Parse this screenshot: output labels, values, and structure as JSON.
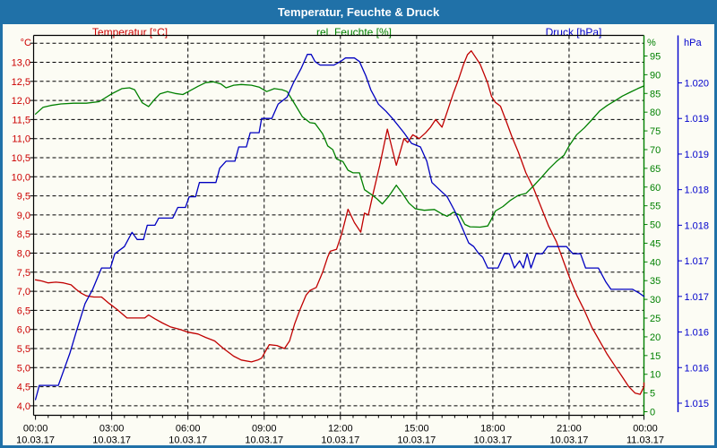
{
  "window": {
    "title": "Temperatur, Feuchte & Druck"
  },
  "header": {
    "temperature_label": "Temperatur [°C]",
    "humidity_label": "rel. Feuchte [%]",
    "pressure_label": "Druck [hPa]"
  },
  "colors": {
    "titlebar": "#2071a8",
    "background": "#fcfcf4",
    "temperature": "#c00000",
    "humidity": "#008000",
    "pressure": "#0000c0",
    "grid": "#000000",
    "text": "#000000"
  },
  "axes": {
    "temperature": {
      "unit": "°C",
      "label_color": "#cc0000",
      "tick_min": 4.0,
      "tick_max": 13.0,
      "tick_step": 0.5,
      "decimal_separator": ","
    },
    "humidity": {
      "unit": "%",
      "label_color": "#008000",
      "tick_min": 0,
      "tick_max": 95,
      "tick_step": 5
    },
    "pressure": {
      "unit": "hPa",
      "label_color": "#0000cc",
      "tick_labels": [
        "1.020",
        "1.019",
        "1.019",
        "1.018",
        "1.018",
        "1.017",
        "1.017",
        "1.016",
        "1.016",
        "1.015"
      ]
    },
    "time": {
      "tick_times": [
        "00:00",
        "03:00",
        "06:00",
        "09:00",
        "12:00",
        "15:00",
        "18:00",
        "21:00",
        "00:00"
      ],
      "tick_dates": [
        "10.03.17",
        "10.03.17",
        "10.03.17",
        "10.03.17",
        "10.03.17",
        "10.03.17",
        "10.03.17",
        "10.03.17",
        "11.03.17"
      ]
    }
  },
  "chart_data": {
    "type": "line",
    "title": "Temperatur, Feuchte & Druck",
    "x": {
      "unit": "hours",
      "range": [
        0,
        24
      ],
      "major_tick_hours": 3,
      "minor_tick_hours": 0.5
    },
    "grid": {
      "horizontal_step_degC": 0.5,
      "vertical_step_hours": 3,
      "style": "dashed"
    },
    "y_axes": {
      "temperature_degC": {
        "labels_from": 13.0,
        "labels_to": 4.0,
        "step": -0.5
      },
      "humidity_pct": {
        "labels_from": 95,
        "labels_to": 0,
        "step": -5
      },
      "pressure_hPa": {
        "labels_top_to_bottom": [
          "1.020",
          "1.019",
          "1.019",
          "1.018",
          "1.018",
          "1.017",
          "1.017",
          "1.016",
          "1.016",
          "1.015"
        ],
        "value_top": 1.02,
        "value_step": -0.0005
      }
    },
    "series": [
      {
        "name": "Temperatur",
        "unit": "°C",
        "axis": "temperature",
        "color": "#c00000",
        "points": [
          [
            0,
            7.3
          ],
          [
            0.25,
            7.27
          ],
          [
            0.5,
            7.22
          ],
          [
            0.8,
            7.24
          ],
          [
            1.1,
            7.22
          ],
          [
            1.4,
            7.17
          ],
          [
            1.6,
            7.05
          ],
          [
            1.8,
            6.95
          ],
          [
            2.0,
            6.88
          ],
          [
            2.3,
            6.85
          ],
          [
            2.6,
            6.85
          ],
          [
            2.9,
            6.68
          ],
          [
            3.2,
            6.53
          ],
          [
            3.6,
            6.3
          ],
          [
            4.3,
            6.3
          ],
          [
            4.45,
            6.38
          ],
          [
            4.7,
            6.28
          ],
          [
            5.0,
            6.17
          ],
          [
            5.3,
            6.07
          ],
          [
            5.7,
            6.0
          ],
          [
            6.0,
            5.93
          ],
          [
            6.4,
            5.88
          ],
          [
            6.7,
            5.79
          ],
          [
            7.05,
            5.7
          ],
          [
            7.4,
            5.5
          ],
          [
            7.8,
            5.3
          ],
          [
            8.1,
            5.2
          ],
          [
            8.5,
            5.15
          ],
          [
            8.75,
            5.2
          ],
          [
            8.9,
            5.25
          ],
          [
            9.2,
            5.6
          ],
          [
            9.5,
            5.58
          ],
          [
            9.8,
            5.5
          ],
          [
            10.0,
            5.7
          ],
          [
            10.2,
            6.15
          ],
          [
            10.4,
            6.5
          ],
          [
            10.65,
            6.9
          ],
          [
            10.8,
            7.02
          ],
          [
            11.05,
            7.1
          ],
          [
            11.3,
            7.5
          ],
          [
            11.5,
            7.9
          ],
          [
            11.6,
            8.05
          ],
          [
            11.85,
            8.1
          ],
          [
            12.05,
            8.5
          ],
          [
            12.3,
            9.15
          ],
          [
            12.55,
            8.8
          ],
          [
            12.8,
            8.55
          ],
          [
            12.95,
            9.05
          ],
          [
            13.1,
            9.0
          ],
          [
            13.3,
            9.6
          ],
          [
            13.55,
            10.3
          ],
          [
            13.85,
            11.25
          ],
          [
            14.05,
            10.7
          ],
          [
            14.2,
            10.3
          ],
          [
            14.5,
            11.0
          ],
          [
            14.65,
            10.9
          ],
          [
            14.85,
            11.1
          ],
          [
            15.1,
            11.0
          ],
          [
            15.35,
            11.15
          ],
          [
            15.55,
            11.3
          ],
          [
            15.75,
            11.5
          ],
          [
            16.0,
            11.3
          ],
          [
            16.2,
            11.7
          ],
          [
            16.45,
            12.2
          ],
          [
            16.65,
            12.55
          ],
          [
            16.85,
            12.95
          ],
          [
            17.0,
            13.2
          ],
          [
            17.15,
            13.3
          ],
          [
            17.35,
            13.1
          ],
          [
            17.5,
            12.95
          ],
          [
            17.65,
            12.7
          ],
          [
            17.8,
            12.45
          ],
          [
            17.95,
            12.1
          ],
          [
            18.1,
            11.95
          ],
          [
            18.3,
            11.85
          ],
          [
            18.5,
            11.5
          ],
          [
            18.75,
            11.05
          ],
          [
            19.0,
            10.65
          ],
          [
            19.3,
            10.1
          ],
          [
            19.6,
            9.7
          ],
          [
            19.9,
            9.2
          ],
          [
            20.2,
            8.7
          ],
          [
            20.5,
            8.3
          ],
          [
            20.8,
            7.75
          ],
          [
            21.05,
            7.3
          ],
          [
            21.3,
            6.9
          ],
          [
            21.6,
            6.5
          ],
          [
            21.9,
            6.05
          ],
          [
            22.2,
            5.7
          ],
          [
            22.5,
            5.35
          ],
          [
            22.8,
            5.05
          ],
          [
            23.1,
            4.75
          ],
          [
            23.35,
            4.5
          ],
          [
            23.6,
            4.33
          ],
          [
            23.8,
            4.3
          ],
          [
            23.95,
            4.5
          ],
          [
            24,
            4.6
          ]
        ]
      },
      {
        "name": "rel. Feuchte",
        "unit": "%",
        "axis": "humidity",
        "color": "#008000",
        "points": [
          [
            0,
            79.5
          ],
          [
            0.3,
            81.3
          ],
          [
            0.6,
            81.8
          ],
          [
            1.0,
            82.2
          ],
          [
            1.5,
            82.4
          ],
          [
            2.0,
            82.4
          ],
          [
            2.5,
            82.8
          ],
          [
            3.0,
            84.9
          ],
          [
            3.4,
            86.3
          ],
          [
            3.7,
            86.5
          ],
          [
            3.9,
            86.0
          ],
          [
            4.2,
            82.5
          ],
          [
            4.45,
            81.5
          ],
          [
            4.7,
            83.5
          ],
          [
            4.9,
            84.9
          ],
          [
            5.2,
            85.5
          ],
          [
            5.5,
            85.0
          ],
          [
            5.8,
            84.7
          ],
          [
            6.1,
            85.8
          ],
          [
            6.4,
            86.9
          ],
          [
            6.7,
            87.9
          ],
          [
            7.0,
            88.1
          ],
          [
            7.3,
            87.5
          ],
          [
            7.5,
            86.5
          ],
          [
            7.8,
            87.2
          ],
          [
            8.1,
            87.4
          ],
          [
            8.5,
            87.2
          ],
          [
            8.8,
            86.7
          ],
          [
            9.1,
            85.5
          ],
          [
            9.4,
            86.3
          ],
          [
            9.7,
            86.0
          ],
          [
            9.9,
            85.5
          ],
          [
            10.2,
            82.2
          ],
          [
            10.5,
            78.8
          ],
          [
            10.8,
            77.2
          ],
          [
            11.0,
            77.0
          ],
          [
            11.3,
            74.2
          ],
          [
            11.5,
            71.0
          ],
          [
            11.7,
            70.0
          ],
          [
            11.85,
            67.5
          ],
          [
            12.1,
            66.8
          ],
          [
            12.3,
            64.5
          ],
          [
            12.5,
            63.8
          ],
          [
            12.75,
            63.8
          ],
          [
            12.95,
            59.3
          ],
          [
            13.2,
            58.1
          ],
          [
            13.45,
            56.8
          ],
          [
            13.65,
            55.5
          ],
          [
            13.9,
            57.5
          ],
          [
            14.2,
            60.5
          ],
          [
            14.45,
            58.2
          ],
          [
            14.7,
            55.7
          ],
          [
            14.95,
            54.2
          ],
          [
            15.3,
            53.8
          ],
          [
            15.7,
            54.0
          ],
          [
            16.0,
            52.8
          ],
          [
            16.2,
            52.2
          ],
          [
            16.45,
            53.3
          ],
          [
            16.7,
            52.5
          ],
          [
            16.9,
            50.0
          ],
          [
            17.1,
            49.4
          ],
          [
            17.5,
            49.3
          ],
          [
            17.8,
            49.6
          ],
          [
            17.95,
            51.5
          ],
          [
            18.1,
            53.6
          ],
          [
            18.4,
            54.8
          ],
          [
            18.7,
            56.5
          ],
          [
            19.0,
            57.8
          ],
          [
            19.3,
            58.3
          ],
          [
            19.6,
            60.3
          ],
          [
            19.9,
            62.5
          ],
          [
            20.2,
            64.8
          ],
          [
            20.5,
            66.8
          ],
          [
            20.8,
            68.5
          ],
          [
            21.0,
            71.0
          ],
          [
            21.3,
            74.0
          ],
          [
            21.6,
            75.8
          ],
          [
            21.9,
            78.0
          ],
          [
            22.2,
            80.3
          ],
          [
            22.5,
            81.8
          ],
          [
            22.8,
            83.0
          ],
          [
            23.1,
            84.3
          ],
          [
            23.4,
            85.3
          ],
          [
            23.7,
            86.3
          ],
          [
            24,
            87.0
          ]
        ]
      },
      {
        "name": "Druck",
        "unit": "hPa",
        "axis": "pressure",
        "color": "#0000c0",
        "points": [
          [
            0,
            1.01555
          ],
          [
            0.15,
            1.01575
          ],
          [
            0.9,
            1.01575
          ],
          [
            1.15,
            1.016
          ],
          [
            1.35,
            1.0162
          ],
          [
            1.6,
            1.0165
          ],
          [
            1.95,
            1.0169
          ],
          [
            2.25,
            1.0171
          ],
          [
            2.6,
            1.0174
          ],
          [
            2.95,
            1.0174
          ],
          [
            3.12,
            1.0176
          ],
          [
            3.5,
            1.0177
          ],
          [
            3.8,
            1.0179
          ],
          [
            4.0,
            1.0178
          ],
          [
            4.25,
            1.0178
          ],
          [
            4.4,
            1.018
          ],
          [
            4.7,
            1.018
          ],
          [
            4.85,
            1.0181
          ],
          [
            5.4,
            1.0181
          ],
          [
            5.6,
            1.01825
          ],
          [
            5.9,
            1.01825
          ],
          [
            6.05,
            1.0184
          ],
          [
            6.3,
            1.0184
          ],
          [
            6.45,
            1.0186
          ],
          [
            7.1,
            1.0186
          ],
          [
            7.25,
            1.0188
          ],
          [
            7.5,
            1.0189
          ],
          [
            7.85,
            1.0189
          ],
          [
            8.0,
            1.0191
          ],
          [
            8.3,
            1.0191
          ],
          [
            8.45,
            1.0193
          ],
          [
            8.8,
            1.0193
          ],
          [
            8.9,
            1.0195
          ],
          [
            9.3,
            1.0195
          ],
          [
            9.55,
            1.0197
          ],
          [
            9.9,
            1.0198
          ],
          [
            10.15,
            1.02
          ],
          [
            10.45,
            1.0202
          ],
          [
            10.7,
            1.0204
          ],
          [
            10.85,
            1.0204
          ],
          [
            11.0,
            1.0203
          ],
          [
            11.2,
            1.02025
          ],
          [
            11.75,
            1.02025
          ],
          [
            12.0,
            1.0203
          ],
          [
            12.2,
            1.02035
          ],
          [
            12.55,
            1.02035
          ],
          [
            12.75,
            1.0203
          ],
          [
            13.0,
            1.0201
          ],
          [
            13.2,
            1.0199
          ],
          [
            13.5,
            1.0197
          ],
          [
            13.8,
            1.0196
          ],
          [
            14.05,
            1.0195
          ],
          [
            14.5,
            1.0193
          ],
          [
            14.8,
            1.01915
          ],
          [
            15.15,
            1.0191
          ],
          [
            15.4,
            1.0189
          ],
          [
            15.6,
            1.0186
          ],
          [
            15.9,
            1.0185
          ],
          [
            16.2,
            1.0184
          ],
          [
            16.5,
            1.0182
          ],
          [
            16.75,
            1.018
          ],
          [
            17.05,
            1.01775
          ],
          [
            17.25,
            1.0177
          ],
          [
            17.45,
            1.0176
          ],
          [
            17.6,
            1.01755
          ],
          [
            17.8,
            1.0174
          ],
          [
            18.2,
            1.0174
          ],
          [
            18.45,
            1.0176
          ],
          [
            18.65,
            1.0176
          ],
          [
            18.85,
            1.0174
          ],
          [
            19.05,
            1.0175
          ],
          [
            19.2,
            1.0174
          ],
          [
            19.35,
            1.0176
          ],
          [
            19.5,
            1.0174
          ],
          [
            19.7,
            1.0176
          ],
          [
            19.95,
            1.0176
          ],
          [
            20.15,
            1.0177
          ],
          [
            20.9,
            1.0177
          ],
          [
            21.15,
            1.0176
          ],
          [
            21.45,
            1.0176
          ],
          [
            21.65,
            1.0174
          ],
          [
            22.15,
            1.0174
          ],
          [
            22.45,
            1.0172
          ],
          [
            22.65,
            1.0171
          ],
          [
            23.5,
            1.0171
          ],
          [
            23.75,
            1.01705
          ],
          [
            24,
            1.017
          ]
        ]
      }
    ]
  }
}
